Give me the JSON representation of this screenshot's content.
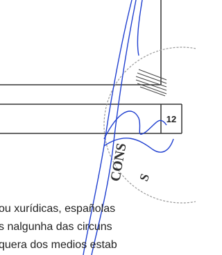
{
  "form": {
    "cell_number": "12"
  },
  "stamp": {
    "line1": "CONS",
    "line2": "S"
  },
  "body": {
    "lines": [
      "ou xurídicas, españolas",
      "s nalgunha das circuns",
      "quera dos medios estab"
    ]
  }
}
